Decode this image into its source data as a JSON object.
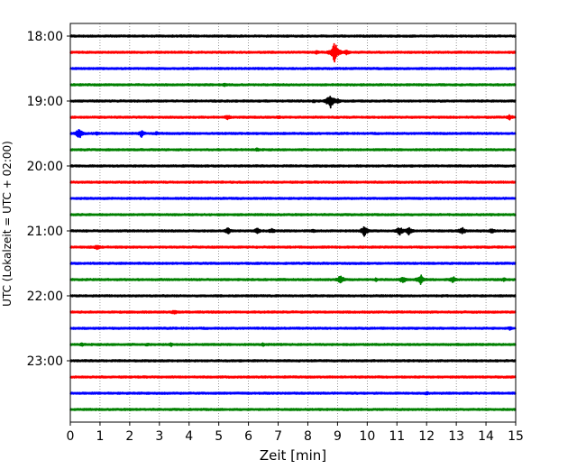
{
  "chart_data": {
    "type": "line",
    "title": "",
    "xlabel": "Zeit  [min]",
    "ylabel": "UTC (Lokalzeit = UTC + 02:00)",
    "xlim": [
      0,
      15
    ],
    "xticks": [
      "0",
      "1",
      "2",
      "3",
      "4",
      "5",
      "6",
      "7",
      "8",
      "9",
      "10",
      "11",
      "12",
      "13",
      "14",
      "15"
    ],
    "yticks": [
      "18:00",
      "19:00",
      "20:00",
      "21:00",
      "22:00",
      "23:00"
    ],
    "grid": "vertical dotted at each minute",
    "trace_colors": [
      "#000000",
      "#ff0000",
      "#0000ff",
      "#008000"
    ],
    "traces": [
      {
        "start": "18:00",
        "events": []
      },
      {
        "start": "18:15",
        "events": [
          {
            "t": 8.9,
            "amp": 12
          },
          {
            "t": 9.3,
            "amp": 3
          },
          {
            "t": 8.3,
            "amp": 2
          }
        ]
      },
      {
        "start": "18:30",
        "events": []
      },
      {
        "start": "18:45",
        "events": [
          {
            "t": 5.2,
            "amp": 2
          }
        ]
      },
      {
        "start": "19:00",
        "events": [
          {
            "t": 8.75,
            "amp": 9
          },
          {
            "t": 9.0,
            "amp": 3
          },
          {
            "t": 8.2,
            "amp": 2
          }
        ]
      },
      {
        "start": "19:15",
        "events": [
          {
            "t": 5.3,
            "amp": 3
          },
          {
            "t": 7.0,
            "amp": 2
          },
          {
            "t": 14.8,
            "amp": 3
          }
        ]
      },
      {
        "start": "19:30",
        "events": [
          {
            "t": 0.3,
            "amp": 6
          },
          {
            "t": 0.9,
            "amp": 2
          },
          {
            "t": 2.4,
            "amp": 4
          },
          {
            "t": 2.9,
            "amp": 2
          }
        ]
      },
      {
        "start": "19:45",
        "events": [
          {
            "t": 6.3,
            "amp": 2
          }
        ]
      },
      {
        "start": "20:00",
        "events": []
      },
      {
        "start": "20:15",
        "events": []
      },
      {
        "start": "20:30",
        "events": []
      },
      {
        "start": "20:45",
        "events": []
      },
      {
        "start": "21:00",
        "events": [
          {
            "t": 5.3,
            "amp": 4
          },
          {
            "t": 6.3,
            "amp": 4
          },
          {
            "t": 6.8,
            "amp": 3
          },
          {
            "t": 8.2,
            "amp": 2
          },
          {
            "t": 9.9,
            "amp": 6
          },
          {
            "t": 11.1,
            "amp": 5
          },
          {
            "t": 11.4,
            "amp": 5
          },
          {
            "t": 13.2,
            "amp": 4
          },
          {
            "t": 14.2,
            "amp": 3
          }
        ]
      },
      {
        "start": "21:15",
        "events": [
          {
            "t": 0.9,
            "amp": 3
          }
        ]
      },
      {
        "start": "21:30",
        "events": []
      },
      {
        "start": "21:45",
        "events": [
          {
            "t": 9.1,
            "amp": 5
          },
          {
            "t": 10.3,
            "amp": 2
          },
          {
            "t": 11.2,
            "amp": 4
          },
          {
            "t": 11.8,
            "amp": 6
          },
          {
            "t": 12.9,
            "amp": 4
          },
          {
            "t": 14.6,
            "amp": 2
          }
        ]
      },
      {
        "start": "22:00",
        "events": []
      },
      {
        "start": "22:15",
        "events": [
          {
            "t": 3.5,
            "amp": 3
          }
        ]
      },
      {
        "start": "22:30",
        "events": [
          {
            "t": 14.8,
            "amp": 2
          }
        ]
      },
      {
        "start": "22:45",
        "events": [
          {
            "t": 0.4,
            "amp": 2
          },
          {
            "t": 2.6,
            "amp": 2
          },
          {
            "t": 3.4,
            "amp": 2
          },
          {
            "t": 6.5,
            "amp": 2
          }
        ]
      },
      {
        "start": "23:00",
        "events": []
      },
      {
        "start": "23:15",
        "events": []
      },
      {
        "start": "23:30",
        "events": [
          {
            "t": 12.0,
            "amp": 2
          }
        ]
      },
      {
        "start": "23:45",
        "events": []
      }
    ]
  }
}
